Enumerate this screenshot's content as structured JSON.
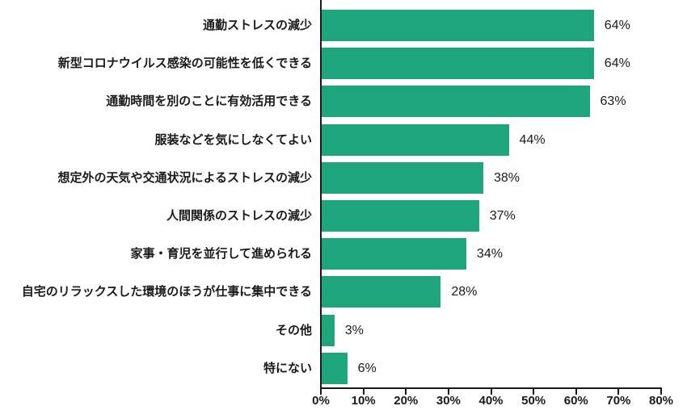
{
  "chart_data": {
    "type": "bar",
    "orientation": "horizontal",
    "title": "",
    "xlabel": "",
    "ylabel": "",
    "categories": [
      "通勤ストレスの減少",
      "新型コロナウイルス感染の可能性を低くできる",
      "通勤時間を別のことに有効活用できる",
      "服装などを気にしなくてよい",
      "想定外の天気や交通状況によるストレスの減少",
      "人間関係のストレスの減少",
      "家事・育児を並行して進められる",
      "自宅のリラックスした環境のほうが仕事に集中できる",
      "その他",
      "特にない"
    ],
    "values": [
      64,
      64,
      63,
      44,
      38,
      37,
      34,
      28,
      3,
      6
    ],
    "value_labels": [
      "64%",
      "64%",
      "63%",
      "44%",
      "38%",
      "37%",
      "34%",
      "28%",
      "3%",
      "6%"
    ],
    "xlim": [
      0,
      80
    ],
    "x_tick_values": [
      0,
      10,
      20,
      30,
      40,
      50,
      60,
      70,
      80
    ],
    "x_tick_labels": [
      "0%",
      "10%",
      "20%",
      "30%",
      "40%",
      "50%",
      "60%",
      "70%",
      "80%"
    ],
    "grid": false,
    "legend": false,
    "colors": {
      "bar": "#1fa57c",
      "axis": "#1a1a1a",
      "text": "#1a1a1a",
      "background": "#ffffff"
    }
  }
}
